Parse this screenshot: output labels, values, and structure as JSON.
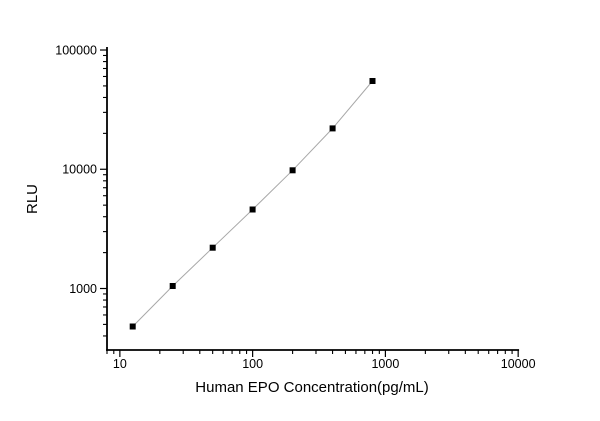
{
  "chart_data": {
    "type": "scatter",
    "xlabel": "Human EPO Concentration(pg/mL)",
    "ylabel": "RLU",
    "x_scale": "log",
    "y_scale": "log",
    "grid": false,
    "legend": "none",
    "xlim": [
      8,
      9800
    ],
    "ylim": [
      305,
      106000
    ],
    "x_ticks": [
      10,
      100,
      1000,
      10000
    ],
    "x_tick_labels": [
      "10",
      "100",
      "1000",
      "10000"
    ],
    "y_ticks": [
      1000,
      10000,
      100000
    ],
    "y_tick_labels": [
      "1000",
      "10000",
      "100000"
    ],
    "points": [
      {
        "x": 12.5,
        "y": 480
      },
      {
        "x": 25,
        "y": 1050
      },
      {
        "x": 50,
        "y": 2200
      },
      {
        "x": 100,
        "y": 4600
      },
      {
        "x": 200,
        "y": 9800
      },
      {
        "x": 400,
        "y": 22000
      },
      {
        "x": 800,
        "y": 55000
      }
    ],
    "marker": {
      "shape": "square",
      "size": 6,
      "color": "#000000"
    },
    "line_color": "#a8a8a8",
    "axis_color": "#000000",
    "background": "#ffffff"
  }
}
